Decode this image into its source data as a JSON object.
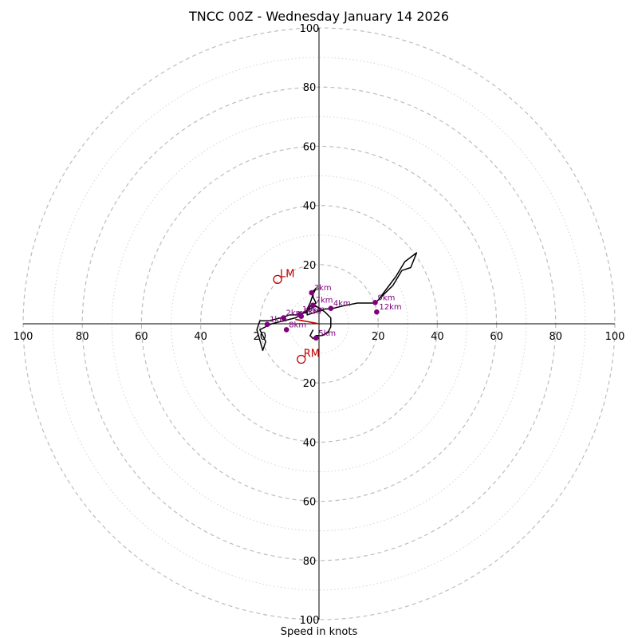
{
  "chart_data": {
    "type": "scatter",
    "subtype": "hodograph",
    "title": "TNCC 00Z - Wednesday January 14 2026",
    "xlabel": "Speed in knots",
    "ring_labels": [
      "20",
      "40",
      "60",
      "80",
      "100"
    ],
    "range": [
      -100,
      100
    ],
    "ring_step": 20,
    "minor_ring_step": 10,
    "trace": [
      [
        -2,
        -2
      ],
      [
        -3,
        -4
      ],
      [
        -2,
        -5
      ],
      [
        -1,
        -4
      ],
      [
        1,
        -4
      ],
      [
        3,
        -3
      ],
      [
        4,
        -1
      ],
      [
        4,
        2
      ],
      [
        2,
        4
      ],
      [
        -1,
        6
      ],
      [
        -3,
        5
      ],
      [
        -5,
        4
      ],
      [
        -6,
        3
      ],
      [
        -8,
        2
      ],
      [
        -12,
        1
      ],
      [
        -16,
        0
      ],
      [
        -20,
        -2
      ],
      [
        -18,
        -6
      ],
      [
        -19,
        -9
      ],
      [
        -21,
        -2
      ],
      [
        -20,
        1
      ],
      [
        -17,
        1
      ],
      [
        -13,
        2
      ],
      [
        -10,
        3
      ],
      [
        -7,
        3
      ],
      [
        -4,
        4
      ],
      [
        -3,
        6
      ],
      [
        -1,
        7
      ],
      [
        -2,
        9
      ],
      [
        -2,
        11
      ],
      [
        -1,
        12
      ],
      [
        -2,
        10
      ],
      [
        -3,
        7
      ],
      [
        -4,
        5
      ],
      [
        -4,
        3
      ],
      [
        -1,
        4
      ],
      [
        2,
        5
      ],
      [
        4,
        5
      ],
      [
        8,
        6
      ],
      [
        13,
        7
      ],
      [
        19,
        7
      ],
      [
        22,
        10
      ],
      [
        25,
        13
      ],
      [
        28,
        18
      ],
      [
        31,
        19
      ],
      [
        33,
        24
      ],
      [
        29,
        21
      ],
      [
        26,
        16
      ],
      [
        23,
        12
      ],
      [
        20,
        8
      ]
    ],
    "height_points": [
      {
        "label": "1km",
        "u": -17.5,
        "v": -0.2
      },
      {
        "label": "2km",
        "u": -12,
        "v": 2
      },
      {
        "label": "3km",
        "u": -2.5,
        "v": 10.5
      },
      {
        "label": "4km",
        "u": 4,
        "v": 5.2
      },
      {
        "label": "5km",
        "u": -1,
        "v": -4.8
      },
      {
        "label": "6km",
        "u": -6,
        "v": 2.5
      },
      {
        "label": "7km",
        "u": -2,
        "v": 6.3
      },
      {
        "label": "8km",
        "u": -11,
        "v": -2
      },
      {
        "label": "9km",
        "u": 19,
        "v": 7.2
      },
      {
        "label": "10km",
        "u": -6.5,
        "v": 3.2
      },
      {
        "label": "12km",
        "u": 19.5,
        "v": 4
      }
    ],
    "storm_motion": [
      {
        "label": "LM",
        "u": -14,
        "v": 15
      },
      {
        "label": "RM",
        "u": -6,
        "v": -12
      }
    ],
    "mean_wind_vector": {
      "u": -8,
      "v": 1.5
    }
  }
}
